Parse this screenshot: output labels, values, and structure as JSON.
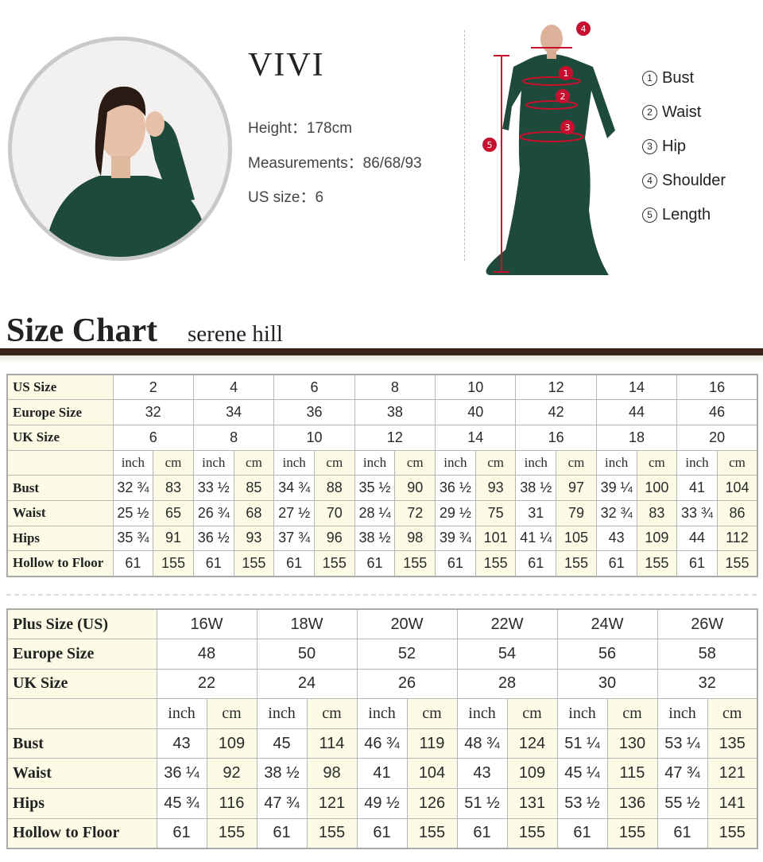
{
  "model": {
    "name": "VIVI",
    "height": "Height：178cm",
    "measurements": "Measurements：86/68/93",
    "us_size": "US size：6"
  },
  "legend": [
    {
      "num": "1",
      "label": "Bust"
    },
    {
      "num": "2",
      "label": "Waist"
    },
    {
      "num": "3",
      "label": "Hip"
    },
    {
      "num": "4",
      "label": "Shoulder"
    },
    {
      "num": "5",
      "label": "Length"
    }
  ],
  "colors": {
    "dress": "#1d4a3a",
    "marker": "#c8102e",
    "title_bar": "#3a2418",
    "cell_highlight": "#fbfbe6"
  },
  "title": {
    "main": "Size Chart",
    "brand": "serene hill"
  },
  "standard": {
    "header_rows": [
      {
        "label": "US Size",
        "values": [
          "2",
          "4",
          "6",
          "8",
          "10",
          "12",
          "14",
          "16"
        ]
      },
      {
        "label": "Europe Size",
        "values": [
          "32",
          "34",
          "36",
          "38",
          "40",
          "42",
          "44",
          "46"
        ]
      },
      {
        "label": "UK Size",
        "values": [
          "6",
          "8",
          "10",
          "12",
          "14",
          "16",
          "18",
          "20"
        ]
      }
    ],
    "units": [
      "inch",
      "cm"
    ],
    "measure_rows": [
      {
        "label": "Bust",
        "values": [
          "32 ¾",
          "83",
          "33 ½",
          "85",
          "34 ¾",
          "88",
          "35 ½",
          "90",
          "36 ½",
          "93",
          "38 ½",
          "97",
          "39 ¼",
          "100",
          "41",
          "104"
        ]
      },
      {
        "label": "Waist",
        "values": [
          "25 ½",
          "65",
          "26 ¾",
          "68",
          "27 ½",
          "70",
          "28 ¼",
          "72",
          "29 ½",
          "75",
          "31",
          "79",
          "32 ¾",
          "83",
          "33 ¾",
          "86"
        ]
      },
      {
        "label": "Hips",
        "values": [
          "35 ¾",
          "91",
          "36 ½",
          "93",
          "37 ¾",
          "96",
          "38 ½",
          "98",
          "39 ¾",
          "101",
          "41 ¼",
          "105",
          "43",
          "109",
          "44",
          "112"
        ]
      },
      {
        "label": "Hollow to Floor",
        "values": [
          "61",
          "155",
          "61",
          "155",
          "61",
          "155",
          "61",
          "155",
          "61",
          "155",
          "61",
          "155",
          "61",
          "155",
          "61",
          "155"
        ]
      }
    ]
  },
  "plus": {
    "header_rows": [
      {
        "label": "Plus Size (US)",
        "values": [
          "16W",
          "18W",
          "20W",
          "22W",
          "24W",
          "26W"
        ]
      },
      {
        "label": "Europe Size",
        "values": [
          "48",
          "50",
          "52",
          "54",
          "56",
          "58"
        ]
      },
      {
        "label": "UK Size",
        "values": [
          "22",
          "24",
          "26",
          "28",
          "30",
          "32"
        ]
      }
    ],
    "units": [
      "inch",
      "cm"
    ],
    "measure_rows": [
      {
        "label": "Bust",
        "values": [
          "43",
          "109",
          "45",
          "114",
          "46 ¾",
          "119",
          "48 ¾",
          "124",
          "51 ¼",
          "130",
          "53 ¼",
          "135"
        ]
      },
      {
        "label": "Waist",
        "values": [
          "36 ¼",
          "92",
          "38 ½",
          "98",
          "41",
          "104",
          "43",
          "109",
          "45 ¼",
          "115",
          "47 ¾",
          "121"
        ]
      },
      {
        "label": "Hips",
        "values": [
          "45 ¾",
          "116",
          "47 ¾",
          "121",
          "49 ½",
          "126",
          "51 ½",
          "131",
          "53 ½",
          "136",
          "55 ½",
          "141"
        ]
      },
      {
        "label": "Hollow to Floor",
        "values": [
          "61",
          "155",
          "61",
          "155",
          "61",
          "155",
          "61",
          "155",
          "61",
          "155",
          "61",
          "155"
        ]
      }
    ]
  }
}
